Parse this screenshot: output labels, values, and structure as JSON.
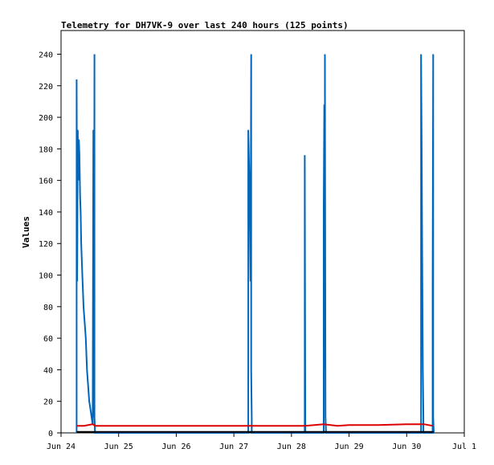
{
  "chart_data": {
    "type": "line",
    "title": "Telemetry for DH7VK-9 over last 240 hours (125 points)",
    "xlabel": "",
    "ylabel": "Values",
    "xlim": [
      0,
      7
    ],
    "ylim": [
      0,
      255
    ],
    "x_ticks": [
      {
        "x": 0,
        "label": "Jun 24"
      },
      {
        "x": 1,
        "label": "Jun 25"
      },
      {
        "x": 2,
        "label": "Jun 26"
      },
      {
        "x": 3,
        "label": "Jun 27"
      },
      {
        "x": 4,
        "label": "Jun 28"
      },
      {
        "x": 5,
        "label": "Jun 29"
      },
      {
        "x": 6,
        "label": "Jun 30"
      },
      {
        "x": 7,
        "label": "Jul 1"
      }
    ],
    "y_ticks": [
      0,
      20,
      40,
      60,
      80,
      100,
      120,
      140,
      160,
      180,
      200,
      220,
      240
    ],
    "grid": false,
    "series": [
      {
        "color": "#0066bb",
        "x": [
          0.27,
          0.27,
          0.28,
          0.29,
          0.3,
          0.31,
          0.32,
          0.33,
          0.34,
          0.35,
          0.37,
          0.39,
          0.41,
          0.43,
          0.45,
          0.47,
          0.49,
          0.51,
          0.53,
          0.55,
          0.56,
          0.57,
          0.58,
          0.58,
          0.59,
          0.6,
          0.6,
          3.25,
          3.25,
          3.27,
          3.29,
          3.3,
          3.3,
          3.31,
          3.31,
          4.23,
          4.23,
          4.24,
          4.56,
          4.56,
          4.57,
          4.58,
          4.58,
          4.59,
          4.6,
          6.25,
          6.25,
          6.26,
          6.27,
          6.28,
          6.29,
          6.29,
          6.45,
          6.45,
          6.46,
          6.46,
          6.47
        ],
        "y": [
          0,
          224,
          96,
          192,
          160,
          186,
          176,
          150,
          140,
          120,
          100,
          80,
          70,
          60,
          40,
          30,
          20,
          15,
          10,
          5,
          192,
          10,
          240,
          10,
          0,
          0,
          0,
          0,
          192,
          160,
          96,
          240,
          40,
          10,
          0,
          0,
          176,
          0,
          0,
          144,
          208,
          40,
          240,
          10,
          0,
          0,
          240,
          186,
          112,
          40,
          10,
          0,
          0,
          96,
          240,
          10,
          0
        ]
      },
      {
        "color": "#dd0000",
        "x": [
          0.27,
          0.4,
          0.55,
          0.6,
          1.0,
          2.0,
          3.0,
          4.0,
          4.23,
          4.4,
          4.56,
          4.8,
          5.0,
          5.5,
          6.0,
          6.3,
          6.45
        ],
        "y": [
          4.5,
          4.5,
          5.5,
          4.5,
          4.5,
          4.5,
          4.5,
          4.5,
          4.5,
          5,
          5.5,
          4.5,
          5,
          5,
          5.5,
          5.5,
          4.5
        ]
      },
      {
        "color": "#000000",
        "x": [
          0.27,
          6.47
        ],
        "y": [
          0.6,
          0.6
        ]
      }
    ]
  }
}
